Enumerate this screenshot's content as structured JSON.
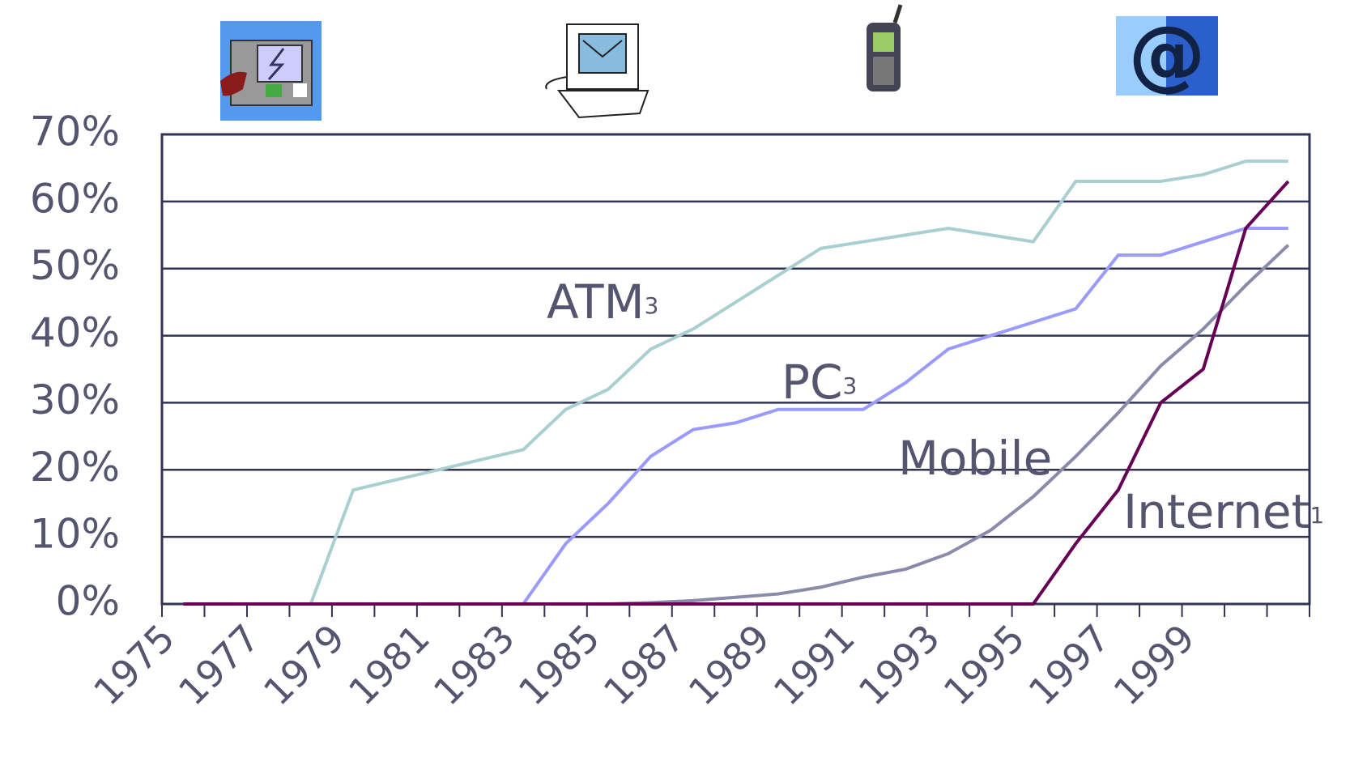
{
  "chart_data": {
    "type": "line",
    "categories": [
      "1975",
      null,
      "1977",
      null,
      "1979",
      null,
      "1981",
      null,
      "1983",
      null,
      "1985",
      null,
      "1987",
      null,
      "1989",
      null,
      "1991",
      null,
      "1993",
      null,
      "1995",
      null,
      "1997",
      null,
      "1999",
      null,
      null
    ],
    "series": [
      {
        "name": "ATM",
        "color": "#a9cfd0",
        "values": [
          0,
          0,
          0,
          0,
          17,
          18.5,
          20,
          21.5,
          23,
          29,
          32,
          38,
          41,
          45,
          49,
          53,
          54,
          55,
          56,
          55,
          54,
          63,
          63,
          63,
          64,
          66,
          66
        ]
      },
      {
        "name": "PC",
        "color": "#9a9aff",
        "values": [
          0,
          0,
          0,
          0,
          0,
          0,
          0,
          0,
          0,
          9,
          15,
          22,
          26,
          27,
          29,
          29,
          29,
          33,
          38,
          40,
          42,
          44,
          52,
          52,
          54,
          56,
          56
        ]
      },
      {
        "name": "Mobile",
        "color": "#8a8aaa",
        "values": [
          0,
          0,
          0,
          0,
          0,
          0,
          0,
          0,
          0,
          0,
          0,
          0.2,
          0.5,
          1,
          1.5,
          2.5,
          4,
          5.2,
          7.5,
          11,
          16,
          22,
          28.5,
          35.5,
          41,
          47.5,
          53.5
        ]
      },
      {
        "name": "Internet",
        "color": "#660055",
        "values": [
          0,
          0,
          0,
          0,
          0,
          0,
          0,
          0,
          0,
          0,
          0,
          0,
          0,
          0,
          0,
          0,
          0,
          0,
          0,
          0,
          0,
          9,
          17,
          30,
          35,
          56,
          63
        ]
      }
    ],
    "annotations": [
      {
        "text": "ATM",
        "sup": "3"
      },
      {
        "text": "PC",
        "sup": "3"
      },
      {
        "text": "Mobile"
      },
      {
        "text": "Internet",
        "sup": "1"
      }
    ],
    "ylim": [
      0,
      70
    ],
    "yticks": [
      {
        "value": 0,
        "label": "0%"
      },
      {
        "value": 10,
        "label": "10%"
      },
      {
        "value": 20,
        "label": "20%"
      },
      {
        "value": 30,
        "label": "30%"
      },
      {
        "value": 40,
        "label": "40%"
      },
      {
        "value": 50,
        "label": "50%"
      },
      {
        "value": 60,
        "label": "60%"
      },
      {
        "value": 70,
        "label": "70%"
      }
    ],
    "grid": true
  }
}
